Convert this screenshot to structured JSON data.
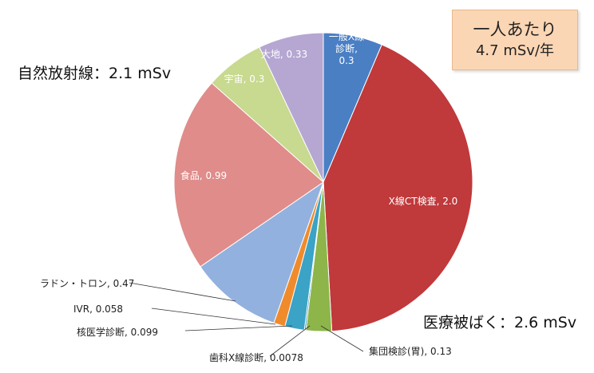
{
  "per_person": {
    "line1": "一人あたり",
    "line2": "4.7 mSv/年"
  },
  "groups": {
    "natural": "自然放射線：2.1 mSv",
    "medical": "医療被ばく：2.6 mSv"
  },
  "chart_data": {
    "type": "pie",
    "unit": "mSv",
    "slices": [
      {
        "label": "一般X線診断, 0.3",
        "value": 0.3,
        "color": "#4a7fc4"
      },
      {
        "label": "X線CT検査, 2.0",
        "value": 2.0,
        "color": "#c0393b"
      },
      {
        "label": "集団検診(胃), 0.13",
        "value": 0.13,
        "color": "#8db54a"
      },
      {
        "label": "歯科X線診断, 0.0078",
        "value": 0.0078,
        "color": "#2b8ca8"
      },
      {
        "label": "核医学診断, 0.099",
        "value": 0.099,
        "color": "#3aa3c6"
      },
      {
        "label": "IVR, 0.058",
        "value": 0.058,
        "color": "#f08b2c"
      },
      {
        "label": "ラドン・トロン, 0.47",
        "value": 0.47,
        "color": "#93b1de"
      },
      {
        "label": "食品, 0.99",
        "value": 0.99,
        "color": "#e08c8a"
      },
      {
        "label": "宇宙, 0.3",
        "value": 0.3,
        "color": "#c8d990"
      },
      {
        "label": "大地, 0.33",
        "value": 0.33,
        "color": "#b5a7d2"
      }
    ]
  }
}
